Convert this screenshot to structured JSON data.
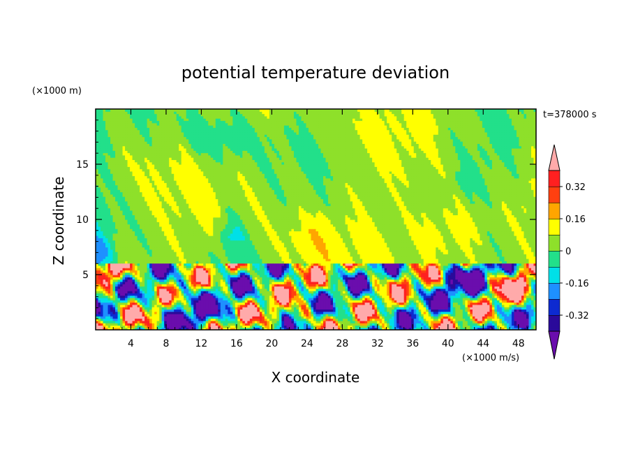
{
  "chart_data": {
    "type": "heatmap",
    "title": "potential temperature deviation",
    "xlabel": "X coordinate",
    "ylabel": "Z coordinate",
    "x_unit": "(×1000 m/s)",
    "y_unit": "(×1000 m)",
    "time_label": "t=378000 s",
    "xlim": [
      0,
      50
    ],
    "ylim": [
      0,
      20
    ],
    "x_ticks": [
      4,
      8,
      12,
      16,
      20,
      24,
      28,
      32,
      36,
      40,
      44,
      48
    ],
    "y_ticks": [
      5,
      10,
      15
    ],
    "x_tick_labels": [
      "4",
      "8",
      "12",
      "16",
      "20",
      "24",
      "28",
      "32",
      "36",
      "40",
      "44",
      "48"
    ],
    "y_tick_labels": [
      "5",
      "10",
      "15"
    ],
    "colorbar": {
      "levels": [
        -0.4,
        -0.32,
        -0.24,
        -0.16,
        -0.08,
        0,
        0.08,
        0.16,
        0.24,
        0.32,
        0.4
      ],
      "labels": [
        "-0.32",
        "-0.16",
        "0",
        "0.16",
        "0.32"
      ],
      "label_values": [
        -0.32,
        -0.16,
        0,
        0.16,
        0.32
      ],
      "colors": [
        "#6a0dad",
        "#2a0a9a",
        "#0d2ad0",
        "#1e90ff",
        "#00e0e8",
        "#22e08a",
        "#8ee02a",
        "#ffff00",
        "#ffa500",
        "#ff4010",
        "#ff2020",
        "#ffaaaa"
      ]
    },
    "field": {
      "description": "upper layer (z > 6) weak anomalies around 0 with cyan/yellow patches; lower layer (z < 6) strong mixed anomalies"
    }
  }
}
